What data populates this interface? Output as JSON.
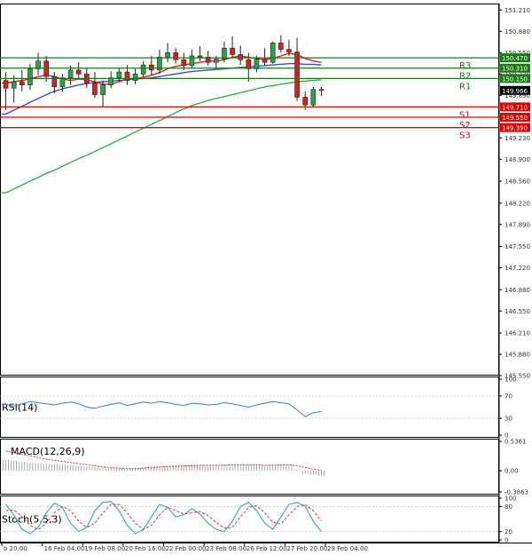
{
  "chart_data": {
    "type": "candlestick",
    "instrument_note": "",
    "price_axis": {
      "ticks": [
        "151.210",
        "150.880",
        "150.550",
        "150.220",
        "149.890",
        "149.560",
        "149.230",
        "148.900",
        "148.560",
        "148.220",
        "147.890",
        "147.550",
        "147.220",
        "146.880",
        "146.550",
        "146.210",
        "145.880",
        "145.550"
      ],
      "range": [
        145.55,
        151.31
      ]
    },
    "current_price": "149.966",
    "levels": [
      {
        "label": "R3",
        "price": 150.47,
        "price_label": "150.470",
        "kind": "resistance"
      },
      {
        "label": "R2",
        "price": 150.31,
        "price_label": "150.310",
        "kind": "resistance"
      },
      {
        "label": "R1",
        "price": 150.15,
        "price_label": "150.150",
        "kind": "resistance"
      },
      {
        "label": "S1",
        "price": 149.71,
        "price_label": "149.710",
        "kind": "support"
      },
      {
        "label": "S2",
        "price": 149.55,
        "price_label": "149.550",
        "kind": "support"
      },
      {
        "label": "S3",
        "price": 149.39,
        "price_label": "149.390",
        "kind": "support"
      }
    ],
    "x_labels": [
      "b 20:00",
      "16 Feb 04:00",
      "19 Feb 08:00",
      "20 Feb 16:00",
      "22 Feb 00:00",
      "23 Feb 08:00",
      "26 Feb 12:00",
      "27 Feb 20:00",
      "29 Feb 04:00"
    ],
    "candles": [
      [
        150.12,
        150.25,
        149.66,
        150.0
      ],
      [
        150.0,
        150.2,
        149.78,
        150.1
      ],
      [
        150.1,
        150.28,
        149.95,
        150.05
      ],
      [
        150.05,
        150.38,
        149.97,
        150.3
      ],
      [
        150.3,
        150.55,
        150.2,
        150.42
      ],
      [
        150.42,
        150.5,
        150.1,
        150.18
      ],
      [
        150.18,
        150.25,
        149.92,
        150.02
      ],
      [
        150.02,
        150.22,
        149.95,
        150.16
      ],
      [
        150.16,
        150.35,
        150.05,
        150.28
      ],
      [
        150.28,
        150.4,
        150.15,
        150.22
      ],
      [
        150.22,
        150.32,
        150.0,
        150.08
      ],
      [
        150.08,
        150.25,
        149.85,
        149.9
      ],
      [
        149.9,
        150.12,
        149.7,
        150.05
      ],
      [
        150.05,
        150.26,
        150.0,
        150.16
      ],
      [
        150.16,
        150.32,
        150.1,
        150.25
      ],
      [
        150.25,
        150.36,
        150.05,
        150.12
      ],
      [
        150.12,
        150.3,
        150.06,
        150.22
      ],
      [
        150.22,
        150.42,
        150.18,
        150.36
      ],
      [
        150.36,
        150.5,
        150.2,
        150.28
      ],
      [
        150.28,
        150.6,
        150.22,
        150.48
      ],
      [
        150.48,
        150.7,
        150.4,
        150.55
      ],
      [
        150.55,
        150.62,
        150.38,
        150.44
      ],
      [
        150.44,
        150.55,
        150.28,
        150.35
      ],
      [
        150.35,
        150.6,
        150.3,
        150.5
      ],
      [
        150.5,
        150.65,
        150.42,
        150.48
      ],
      [
        150.48,
        150.58,
        150.35,
        150.4
      ],
      [
        150.4,
        150.5,
        150.3,
        150.45
      ],
      [
        150.45,
        150.72,
        150.4,
        150.62
      ],
      [
        150.62,
        150.8,
        150.48,
        150.52
      ],
      [
        150.52,
        150.66,
        150.36,
        150.44
      ],
      [
        150.44,
        150.55,
        150.1,
        150.3
      ],
      [
        150.3,
        150.5,
        150.25,
        150.45
      ],
      [
        150.45,
        150.62,
        150.35,
        150.4
      ],
      [
        150.4,
        150.72,
        150.38,
        150.7
      ],
      [
        150.7,
        150.82,
        150.55,
        150.6
      ],
      [
        150.6,
        150.75,
        150.5,
        150.56
      ],
      [
        150.56,
        150.78,
        149.8,
        149.86
      ],
      [
        149.86,
        149.95,
        149.66,
        149.74
      ],
      [
        149.74,
        150.02,
        149.7,
        149.98
      ],
      [
        149.98,
        150.02,
        149.88,
        149.966
      ]
    ],
    "series": [
      {
        "name": "",
        "color": "#2db34a",
        "values": [
          148.38,
          148.44,
          148.5,
          148.56,
          148.62,
          148.68,
          148.73,
          148.79,
          148.85,
          148.91,
          148.96,
          149.02,
          149.08,
          149.14,
          149.2,
          149.26,
          149.32,
          149.38,
          149.44,
          149.5,
          149.56,
          149.62,
          149.68,
          149.73,
          149.77,
          149.81,
          149.84,
          149.87,
          149.9,
          149.93,
          149.96,
          149.99,
          150.02,
          150.04,
          150.06,
          150.08,
          150.1,
          150.11,
          150.12,
          150.13
        ]
      },
      {
        "name": "",
        "color": "#3b4ad0",
        "values": [
          149.6,
          149.66,
          149.72,
          149.78,
          149.84,
          149.9,
          149.95,
          149.99,
          150.02,
          150.05,
          150.07,
          150.09,
          150.1,
          150.11,
          150.12,
          150.13,
          150.14,
          150.15,
          150.16,
          150.18,
          150.2,
          150.22,
          150.24,
          150.26,
          150.27,
          150.28,
          150.29,
          150.3,
          150.31,
          150.32,
          150.33,
          150.34,
          150.35,
          150.36,
          150.37,
          150.38,
          150.38,
          150.37,
          150.37,
          150.36
        ]
      },
      {
        "name": "",
        "color": "#e02020",
        "values": [
          150.08,
          150.1,
          150.12,
          150.14,
          150.18,
          150.2,
          150.18,
          150.14,
          150.12,
          150.14,
          150.13,
          150.1,
          150.06,
          150.06,
          150.1,
          150.14,
          150.15,
          150.17,
          150.2,
          150.24,
          150.3,
          150.34,
          150.36,
          150.38,
          150.4,
          150.42,
          150.42,
          150.44,
          150.48,
          150.5,
          150.48,
          150.46,
          150.44,
          150.46,
          150.5,
          150.54,
          150.52,
          150.46,
          150.42,
          150.4
        ]
      }
    ],
    "rsi": {
      "label": "RSI(14)",
      "ticks": [
        "100",
        "70",
        "30",
        "0"
      ],
      "range": [
        0,
        100
      ],
      "values": [
        55,
        52,
        56,
        60,
        58,
        56,
        54,
        57,
        59,
        56,
        50,
        48,
        52,
        55,
        58,
        53,
        56,
        59,
        57,
        60,
        58,
        55,
        53,
        57,
        56,
        54,
        55,
        58,
        56,
        53,
        50,
        54,
        57,
        60,
        58,
        56,
        45,
        33,
        40,
        42
      ]
    },
    "macd": {
      "label": "MACD(12,26,9)",
      "ticks": [
        "0.5361",
        "0.00",
        "-0.3863"
      ],
      "range": [
        -0.3863,
        0.5361
      ],
      "histogram": [
        0.2,
        0.18,
        0.16,
        0.15,
        0.14,
        0.13,
        0.12,
        0.11,
        0.1,
        0.09,
        0.08,
        0.07,
        0.06,
        0.05,
        0.05,
        0.04,
        0.05,
        0.06,
        0.07,
        0.08,
        0.09,
        0.1,
        0.1,
        0.11,
        0.11,
        0.1,
        0.1,
        0.11,
        0.12,
        0.12,
        0.11,
        0.1,
        0.1,
        0.11,
        0.12,
        0.11,
        0.02,
        -0.06,
        -0.08,
        -0.09
      ],
      "signal": [
        0.36,
        0.33,
        0.3,
        0.27,
        0.24,
        0.21,
        0.19,
        0.17,
        0.15,
        0.13,
        0.11,
        0.09,
        0.07,
        0.06,
        0.05,
        0.04,
        0.04,
        0.05,
        0.06,
        0.07,
        0.08,
        0.08,
        0.09,
        0.09,
        0.1,
        0.1,
        0.1,
        0.1,
        0.11,
        0.11,
        0.11,
        0.11,
        0.1,
        0.1,
        0.11,
        0.11,
        0.09,
        0.06,
        0.03,
        0.01
      ]
    },
    "stoch": {
      "label": "Stoch(5,5,3)",
      "ticks": [
        "100",
        "80",
        "20",
        "0"
      ],
      "range": [
        0,
        100
      ],
      "k": [
        85,
        60,
        25,
        15,
        30,
        65,
        88,
        78,
        40,
        20,
        30,
        70,
        90,
        92,
        70,
        35,
        15,
        25,
        55,
        85,
        78,
        55,
        60,
        75,
        62,
        40,
        25,
        20,
        45,
        80,
        90,
        70,
        40,
        25,
        55,
        85,
        90,
        80,
        45,
        20
      ],
      "d": [
        70,
        72,
        55,
        35,
        25,
        40,
        65,
        80,
        70,
        45,
        30,
        40,
        65,
        85,
        85,
        65,
        40,
        25,
        35,
        60,
        78,
        70,
        62,
        65,
        68,
        58,
        42,
        28,
        30,
        55,
        78,
        82,
        65,
        42,
        38,
        60,
        80,
        85,
        70,
        45
      ]
    }
  }
}
